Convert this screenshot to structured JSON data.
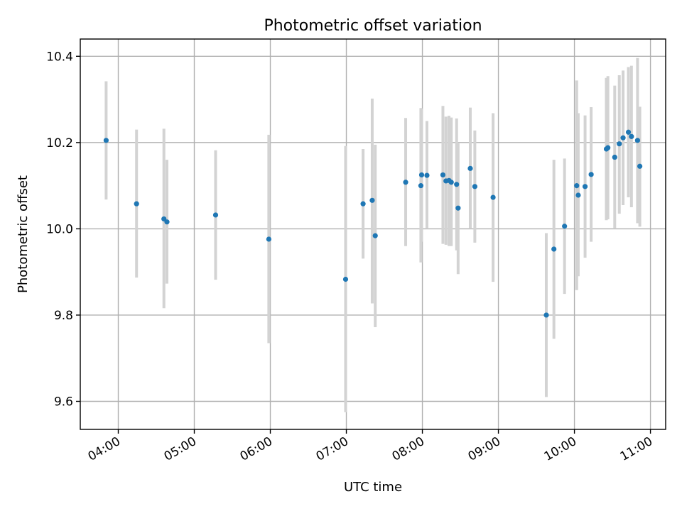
{
  "chart_data": {
    "type": "scatter",
    "title": "Photometric offset variation",
    "xlabel": "UTC time",
    "ylabel": "Photometric offset",
    "x_unit": "hours UTC",
    "xlim": [
      3.5,
      11.2
    ],
    "ylim": [
      9.535,
      10.44
    ],
    "x_ticks": [
      {
        "value": 4,
        "label": "04:00"
      },
      {
        "value": 5,
        "label": "05:00"
      },
      {
        "value": 6,
        "label": "06:00"
      },
      {
        "value": 7,
        "label": "07:00"
      },
      {
        "value": 8,
        "label": "08:00"
      },
      {
        "value": 9,
        "label": "09:00"
      },
      {
        "value": 10,
        "label": "10:00"
      },
      {
        "value": 11,
        "label": "11:00"
      }
    ],
    "y_ticks": [
      {
        "value": 9.6,
        "label": "9.6"
      },
      {
        "value": 9.8,
        "label": "9.8"
      },
      {
        "value": 10.0,
        "label": "10.0"
      },
      {
        "value": 10.2,
        "label": "10.2"
      },
      {
        "value": 10.4,
        "label": "10.4"
      }
    ],
    "grid": true,
    "legend": null,
    "colors": {
      "points": "#1f77b4",
      "error_bars": "#d3d3d3",
      "grid": "#b0b0b0"
    },
    "points": [
      {
        "x": 3.84,
        "y": 10.205,
        "lo": 10.068,
        "hi": 10.342
      },
      {
        "x": 4.24,
        "y": 10.058,
        "lo": 9.887,
        "hi": 10.23
      },
      {
        "x": 4.6,
        "y": 10.023,
        "lo": 9.816,
        "hi": 10.232
      },
      {
        "x": 4.64,
        "y": 10.016,
        "lo": 9.873,
        "hi": 10.16
      },
      {
        "x": 5.28,
        "y": 10.032,
        "lo": 9.882,
        "hi": 10.182
      },
      {
        "x": 5.98,
        "y": 9.976,
        "lo": 9.735,
        "hi": 10.218
      },
      {
        "x": 6.99,
        "y": 9.883,
        "lo": 9.575,
        "hi": 10.192
      },
      {
        "x": 7.22,
        "y": 10.058,
        "lo": 9.931,
        "hi": 10.185
      },
      {
        "x": 7.34,
        "y": 10.066,
        "lo": 9.827,
        "hi": 10.302
      },
      {
        "x": 7.38,
        "y": 9.984,
        "lo": 9.772,
        "hi": 10.195
      },
      {
        "x": 7.78,
        "y": 10.108,
        "lo": 9.96,
        "hi": 10.257
      },
      {
        "x": 7.98,
        "y": 10.1,
        "lo": 9.922,
        "hi": 10.28
      },
      {
        "x": 7.99,
        "y": 10.125,
        "lo": 9.97,
        "hi": 10.278
      },
      {
        "x": 8.06,
        "y": 10.124,
        "lo": 10.0,
        "hi": 10.25
      },
      {
        "x": 8.27,
        "y": 10.125,
        "lo": 9.965,
        "hi": 10.285
      },
      {
        "x": 8.31,
        "y": 10.111,
        "lo": 9.963,
        "hi": 10.26
      },
      {
        "x": 8.35,
        "y": 10.112,
        "lo": 9.96,
        "hi": 10.262
      },
      {
        "x": 8.38,
        "y": 10.108,
        "lo": 9.96,
        "hi": 10.258
      },
      {
        "x": 8.45,
        "y": 10.103,
        "lo": 9.95,
        "hi": 10.256
      },
      {
        "x": 8.47,
        "y": 10.048,
        "lo": 9.895,
        "hi": 10.2
      },
      {
        "x": 8.63,
        "y": 10.14,
        "lo": 10.0,
        "hi": 10.281
      },
      {
        "x": 8.69,
        "y": 10.098,
        "lo": 9.968,
        "hi": 10.228
      },
      {
        "x": 8.93,
        "y": 10.073,
        "lo": 9.877,
        "hi": 10.268
      },
      {
        "x": 9.63,
        "y": 9.8,
        "lo": 9.61,
        "hi": 9.99
      },
      {
        "x": 9.73,
        "y": 9.953,
        "lo": 9.745,
        "hi": 10.16
      },
      {
        "x": 9.87,
        "y": 10.006,
        "lo": 9.849,
        "hi": 10.163
      },
      {
        "x": 10.03,
        "y": 10.1,
        "lo": 9.858,
        "hi": 10.344
      },
      {
        "x": 10.05,
        "y": 10.078,
        "lo": 9.89,
        "hi": 10.268
      },
      {
        "x": 10.14,
        "y": 10.098,
        "lo": 9.933,
        "hi": 10.263
      },
      {
        "x": 10.22,
        "y": 10.126,
        "lo": 9.97,
        "hi": 10.282
      },
      {
        "x": 10.42,
        "y": 10.185,
        "lo": 10.02,
        "hi": 10.35
      },
      {
        "x": 10.44,
        "y": 10.188,
        "lo": 10.022,
        "hi": 10.354
      },
      {
        "x": 10.53,
        "y": 10.166,
        "lo": 10.0,
        "hi": 10.332
      },
      {
        "x": 10.59,
        "y": 10.197,
        "lo": 10.035,
        "hi": 10.356
      },
      {
        "x": 10.64,
        "y": 10.211,
        "lo": 10.055,
        "hi": 10.367
      },
      {
        "x": 10.71,
        "y": 10.224,
        "lo": 10.073,
        "hi": 10.375
      },
      {
        "x": 10.75,
        "y": 10.214,
        "lo": 10.05,
        "hi": 10.378
      },
      {
        "x": 10.83,
        "y": 10.205,
        "lo": 10.013,
        "hi": 10.396
      },
      {
        "x": 10.86,
        "y": 10.145,
        "lo": 10.005,
        "hi": 10.283
      }
    ]
  }
}
